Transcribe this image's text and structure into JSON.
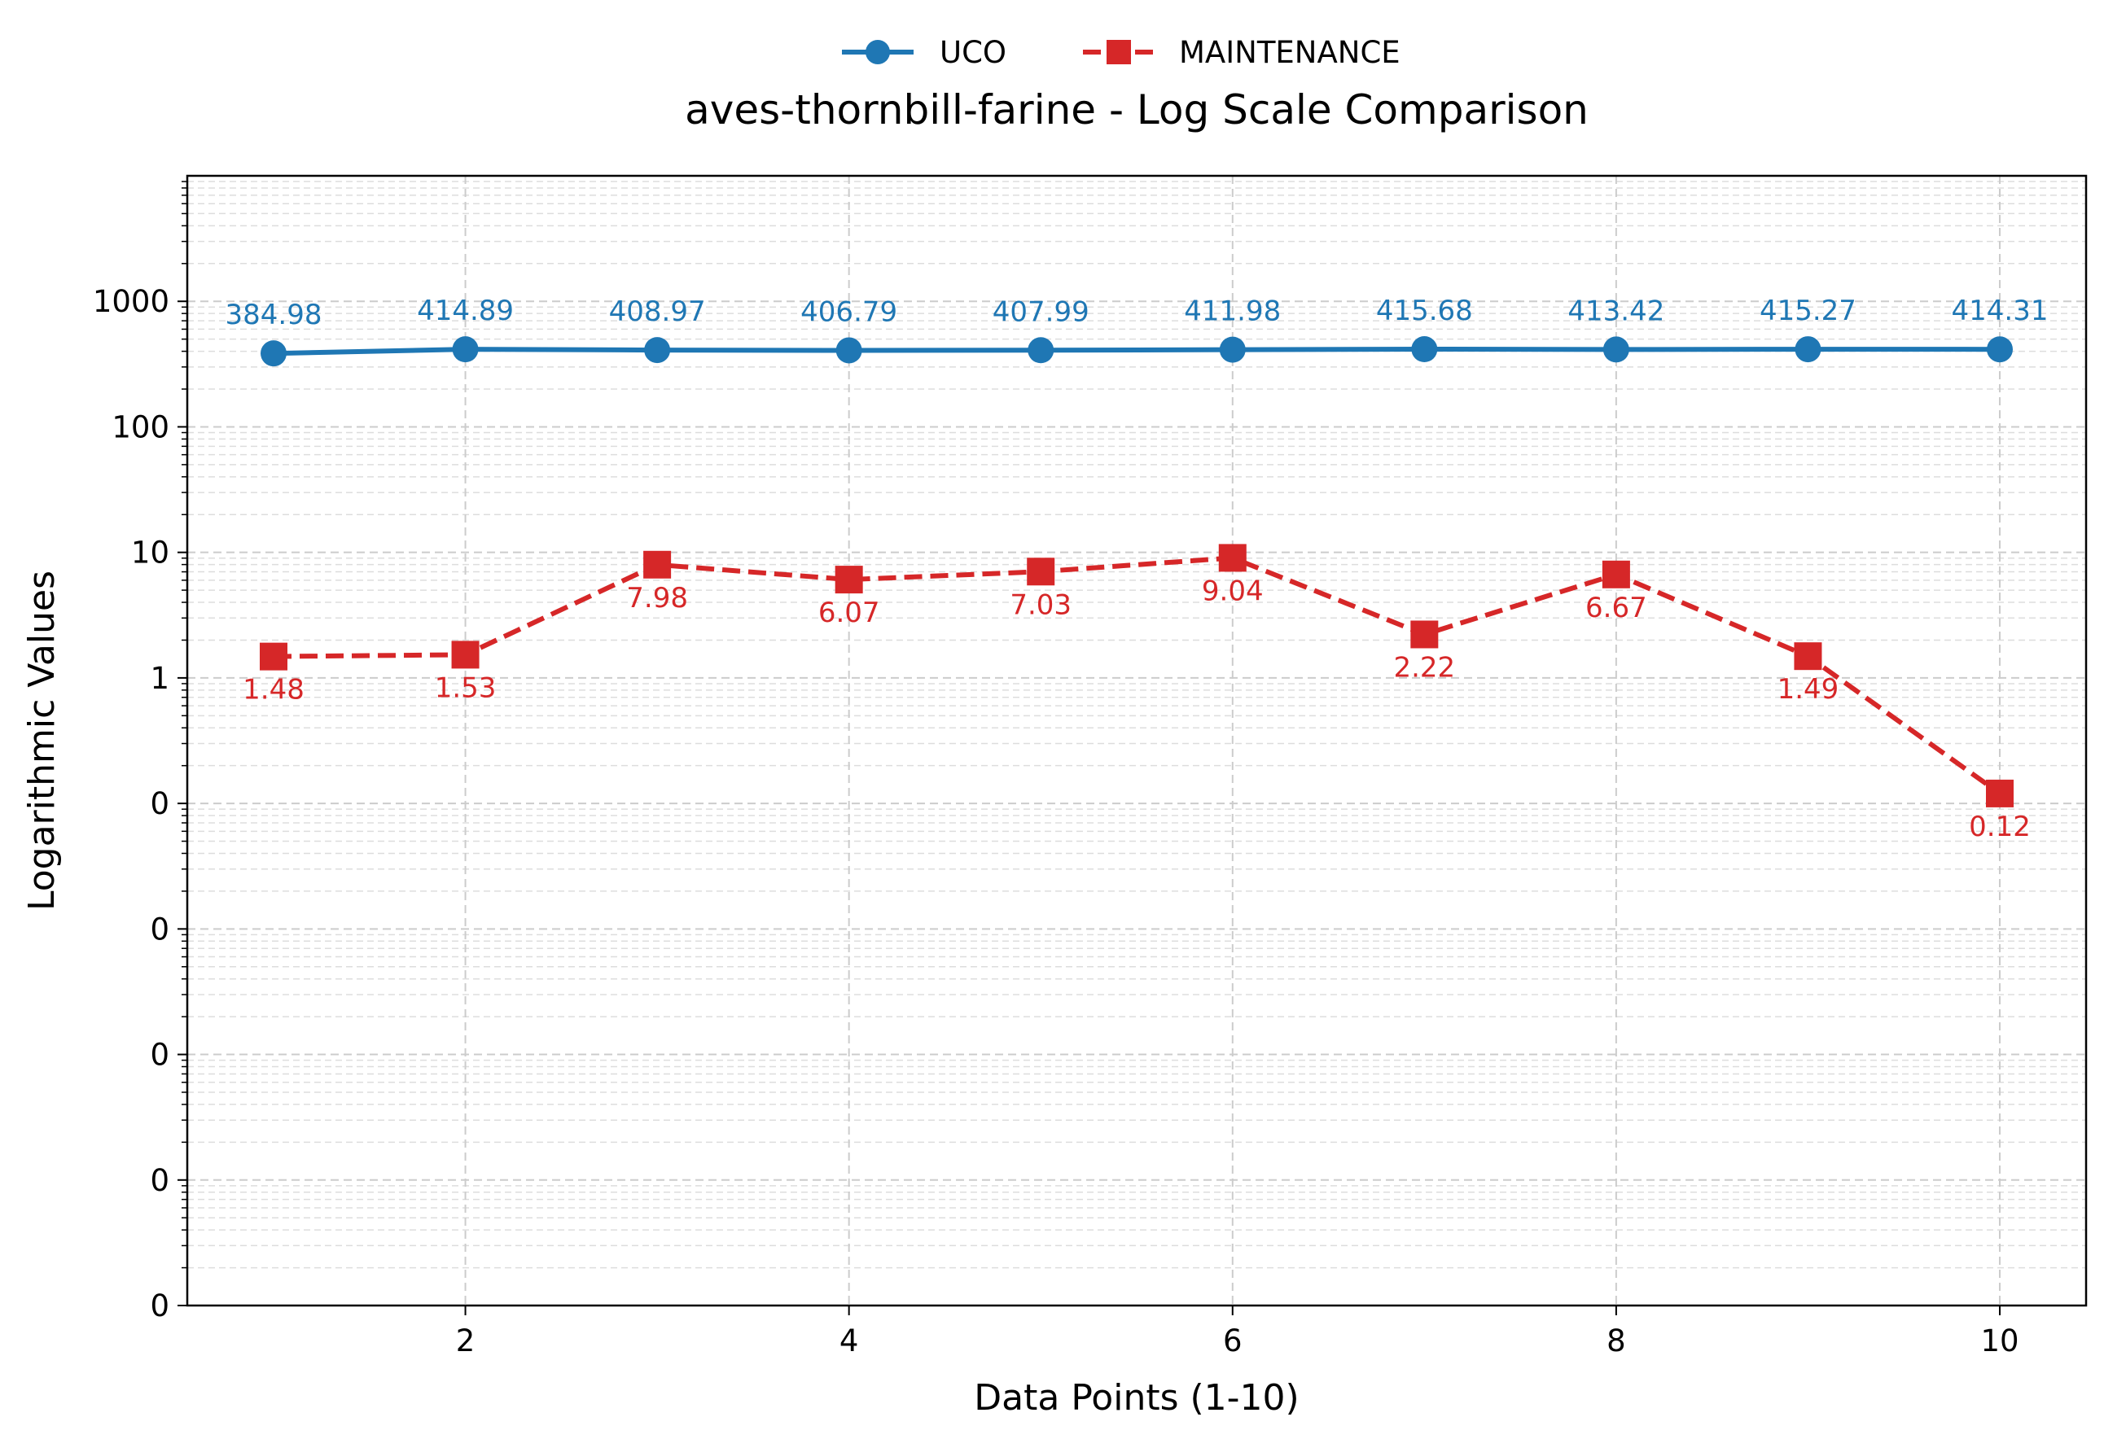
{
  "chart_data": {
    "type": "line",
    "title": "aves-thornbill-farine - Log Scale Comparison",
    "xlabel": "Data Points (1-10)",
    "ylabel": "Logarithmic Values",
    "yscale": "log",
    "xlim": [
      0.55,
      10.45
    ],
    "ylim": [
      1e-05,
      10000
    ],
    "x": [
      1,
      2,
      3,
      4,
      5,
      6,
      7,
      8,
      9,
      10
    ],
    "x_ticks": [
      2,
      4,
      6,
      8,
      10
    ],
    "x_tick_labels": [
      "2",
      "4",
      "6",
      "8",
      "10"
    ],
    "y_ticks": [
      1000,
      100,
      10,
      1,
      0.1,
      0.01,
      0.001,
      0.0001,
      1e-05
    ],
    "y_tick_labels": [
      "1000",
      "100",
      "10",
      "1",
      "0",
      "0",
      "0",
      "0",
      "0"
    ],
    "grid": true,
    "legend_position": "top-center, above title",
    "series": [
      {
        "name": "UCO",
        "color": "#1f77b4",
        "line_style": "solid",
        "marker": "circle",
        "values": [
          384.98,
          414.89,
          408.97,
          406.79,
          407.99,
          411.98,
          415.68,
          413.42,
          415.27,
          414.31
        ],
        "labels": [
          "384.98",
          "414.89",
          "408.97",
          "406.79",
          "407.99",
          "411.98",
          "415.68",
          "413.42",
          "415.27",
          "414.31"
        ]
      },
      {
        "name": "MAINTENANCE",
        "color": "#d62728",
        "line_style": "dashed",
        "marker": "square",
        "values": [
          1.48,
          1.53,
          7.98,
          6.07,
          7.03,
          9.04,
          2.22,
          6.67,
          1.49,
          0.12
        ],
        "labels": [
          "1.48",
          "1.53",
          "7.98",
          "6.07",
          "7.03",
          "9.04",
          "2.22",
          "6.67",
          "1.49",
          "0.12"
        ]
      }
    ]
  }
}
